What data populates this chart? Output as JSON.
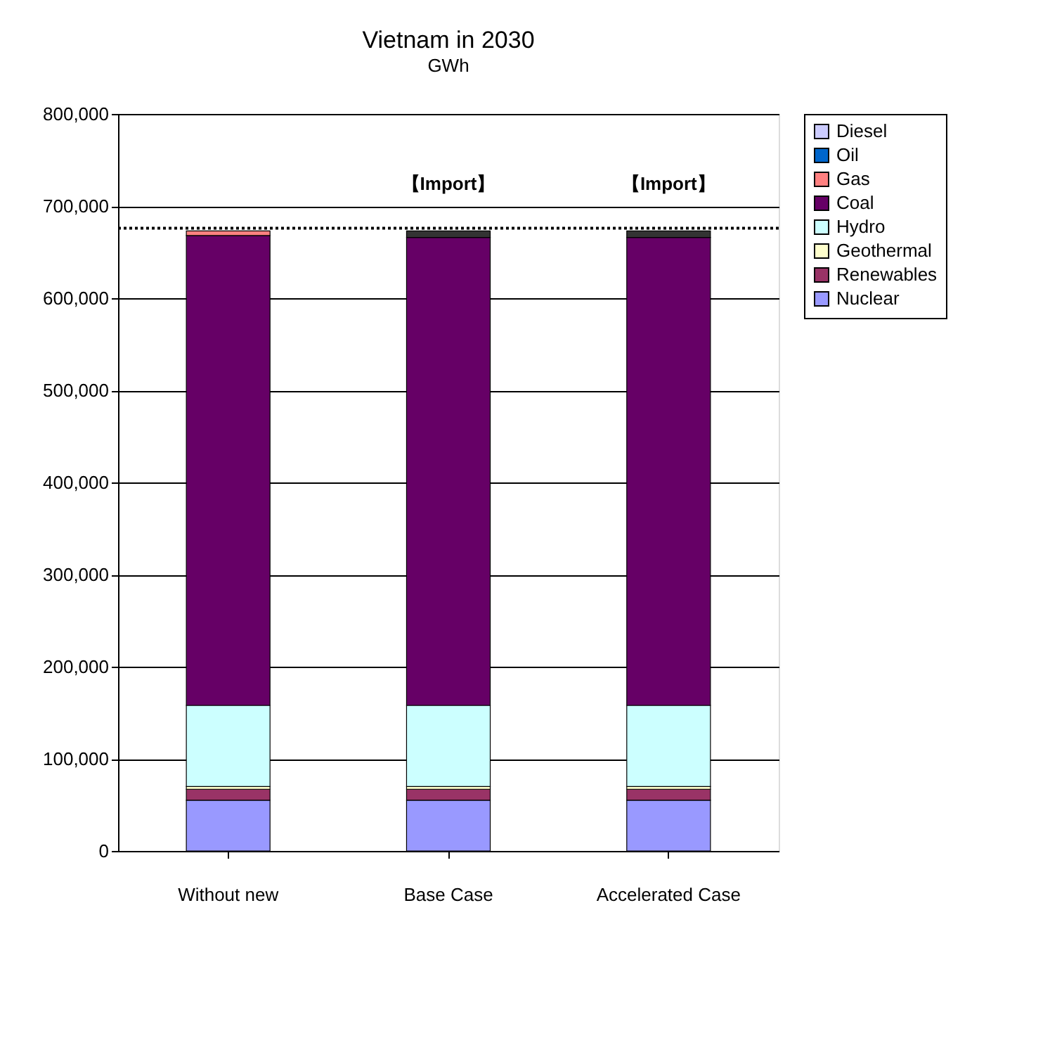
{
  "chart_data": {
    "type": "bar",
    "title": "Vietnam in 2030",
    "ylabel": "GWh",
    "stacked": true,
    "categories": [
      "Without new",
      "Base Case",
      "Accelerated Case"
    ],
    "series": [
      {
        "name": "Nuclear",
        "color": "#9999ff",
        "values": [
          55000,
          55000,
          55000
        ]
      },
      {
        "name": "Renewables",
        "color": "#993366",
        "values": [
          12000,
          12000,
          12000
        ]
      },
      {
        "name": "Geothermal",
        "color": "#ffffcc",
        "values": [
          3000,
          3000,
          3000
        ]
      },
      {
        "name": "Hydro",
        "color": "#ccffff",
        "values": [
          88000,
          88000,
          88000
        ]
      },
      {
        "name": "Coal",
        "color": "#660066",
        "values": [
          510000,
          508000,
          508000
        ]
      },
      {
        "name": "Gas",
        "color": "#ff8080",
        "values": [
          5000,
          0,
          0
        ]
      },
      {
        "name": "Oil",
        "color": "#0066cc",
        "values": [
          0,
          0,
          0
        ]
      },
      {
        "name": "Diesel",
        "color": "#ccccff",
        "values": [
          0,
          0,
          0
        ]
      },
      {
        "color": "#333333",
        "values": [
          0,
          7000,
          7000
        ]
      }
    ],
    "ylim": [
      0,
      800000
    ],
    "yticks": [
      0,
      {
        "value": 100000,
        "label": "100,000"
      },
      {
        "value": 200000,
        "label": "200,000"
      },
      {
        "value": 300000,
        "label": "300,000"
      },
      {
        "value": 400000,
        "label": "400,000"
      },
      {
        "value": 500000,
        "label": "500,000"
      },
      {
        "value": 600000,
        "label": "600,000"
      },
      {
        "value": 700000,
        "label": "700,000"
      },
      {
        "value": 800000,
        "label": "800,000"
      }
    ],
    "grid": "y",
    "legend": "right",
    "ref_lines": [
      {
        "axis": "y",
        "value": 676000,
        "line_style": "dotted",
        "color": "#000000"
      }
    ],
    "annotations": [
      {
        "text": "【Import】",
        "x": "Base Case",
        "y": 675000
      },
      {
        "text": "【Import】",
        "x": "Accelerated Case",
        "y": 675000
      }
    ]
  }
}
